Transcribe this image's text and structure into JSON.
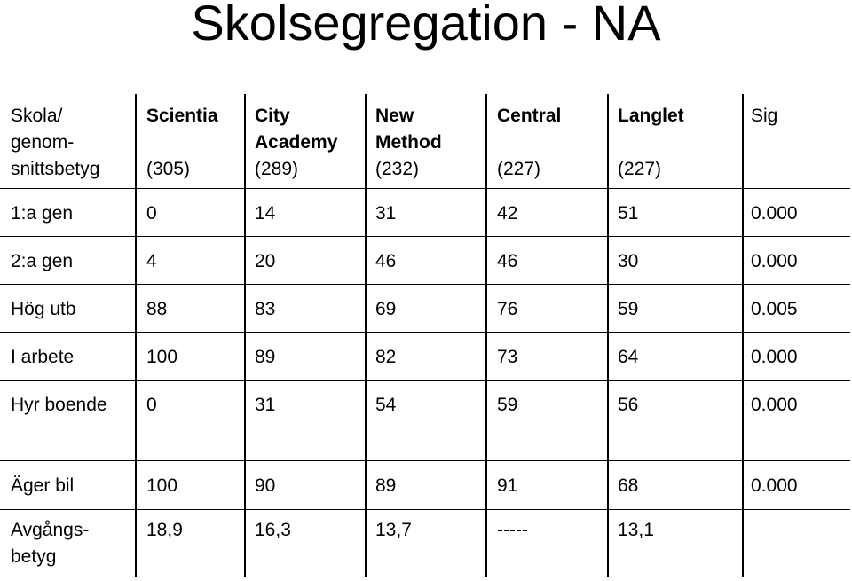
{
  "title": "Skolsegregation - NA",
  "header": {
    "row_label": [
      "Skola/",
      "genom-",
      "snittsbetyg"
    ],
    "schools": [
      {
        "name_lines": [
          "Scientia"
        ],
        "count": "(305)"
      },
      {
        "name_lines": [
          "City",
          "Academy"
        ],
        "count": "(289)"
      },
      {
        "name_lines": [
          "New",
          "Method"
        ],
        "count": "(232)"
      },
      {
        "name_lines": [
          "Central"
        ],
        "count": "(227)"
      },
      {
        "name_lines": [
          "Langlet"
        ],
        "count": "(227)"
      }
    ],
    "sig": "Sig"
  },
  "rows": [
    {
      "label": "1:a gen",
      "values": [
        "0",
        "14",
        "31",
        "42",
        "51"
      ],
      "sig": "0.000"
    },
    {
      "label": "2:a gen",
      "values": [
        "4",
        "20",
        "46",
        "46",
        "30"
      ],
      "sig": "0.000"
    },
    {
      "label": "Hög utb",
      "values": [
        "88",
        "83",
        "69",
        "76",
        "59"
      ],
      "sig": "0.005"
    },
    {
      "label": "I arbete",
      "values": [
        "100",
        "89",
        "82",
        "73",
        "64"
      ],
      "sig": "0.000"
    },
    {
      "label": "Hyr boende",
      "values": [
        "0",
        "31",
        "54",
        "59",
        "56"
      ],
      "sig": "0.000"
    },
    {
      "label": "Äger bil",
      "values": [
        "100",
        "90",
        "89",
        "91",
        "68"
      ],
      "sig": "0.000"
    }
  ],
  "footer": {
    "label_lines": [
      "Avgångs-",
      "betyg"
    ],
    "values": [
      "18,9",
      "16,3",
      "13,7",
      "-----",
      "13,1"
    ],
    "sig": ""
  }
}
